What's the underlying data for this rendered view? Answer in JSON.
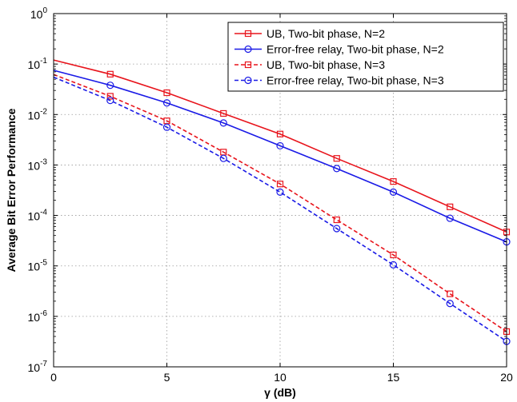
{
  "chart_data": {
    "type": "line",
    "xlabel": "γ (dB)",
    "ylabel": "Average Bit Error Performance",
    "xlim": [
      0,
      20
    ],
    "ylim": [
      1e-07,
      1
    ],
    "yscale": "log",
    "grid": true,
    "legend_position": "top-right",
    "x_ticks": [
      0,
      5,
      10,
      15,
      20
    ],
    "x_tick_labels": [
      "0",
      "5",
      "10",
      "15",
      "20"
    ],
    "y_ticks": [
      1,
      0.1,
      0.01,
      0.001,
      0.0001,
      1e-05,
      1e-06,
      1e-07
    ],
    "y_tick_labels": [
      {
        "base": "10",
        "exp": "0"
      },
      {
        "base": "10",
        "exp": "-1"
      },
      {
        "base": "10",
        "exp": "-2"
      },
      {
        "base": "10",
        "exp": "-3"
      },
      {
        "base": "10",
        "exp": "-4"
      },
      {
        "base": "10",
        "exp": "-5"
      },
      {
        "base": "10",
        "exp": "-6"
      },
      {
        "base": "10",
        "exp": "-7"
      }
    ],
    "x": [
      0,
      2.5,
      5,
      7.5,
      10,
      12.5,
      15,
      17.5,
      20
    ],
    "series": [
      {
        "name": "UB, Two-bit phase, N=2",
        "color": "#e8141c",
        "line_style": "solid",
        "marker": "square",
        "marker_x": [
          2.5,
          5,
          7.5,
          10,
          12.5,
          15,
          17.5,
          20
        ],
        "values": [
          0.12,
          0.063,
          0.027,
          0.0105,
          0.0041,
          0.00135,
          0.00047,
          0.000148,
          4.7e-05
        ]
      },
      {
        "name": "Error-free relay, Two-bit phase, N=2",
        "color": "#1a1ae6",
        "line_style": "solid",
        "marker": "circle",
        "marker_x": [
          2.5,
          5,
          7.5,
          10,
          12.5,
          15,
          17.5,
          20
        ],
        "values": [
          0.075,
          0.038,
          0.017,
          0.0068,
          0.0024,
          0.00085,
          0.00029,
          8.8e-05,
          3e-05
        ]
      },
      {
        "name": "UB, Two-bit phase, N=3",
        "color": "#e8141c",
        "line_style": "dashed",
        "marker": "square",
        "marker_x": [
          2.5,
          5,
          7.5,
          10,
          12.5,
          15,
          17.5,
          20
        ],
        "values": [
          0.062,
          0.023,
          0.0075,
          0.0018,
          0.00042,
          8.2e-05,
          1.65e-05,
          2.8e-06,
          5e-07
        ]
      },
      {
        "name": "Error-free relay, Two-bit phase, N=3",
        "color": "#1a1ae6",
        "line_style": "dashed",
        "marker": "circle",
        "marker_x": [
          2.5,
          5,
          7.5,
          10,
          12.5,
          15,
          17.5,
          20
        ],
        "values": [
          0.055,
          0.019,
          0.0056,
          0.00135,
          0.00029,
          5.5e-05,
          1.05e-05,
          1.8e-06,
          3.2e-07
        ]
      }
    ]
  }
}
